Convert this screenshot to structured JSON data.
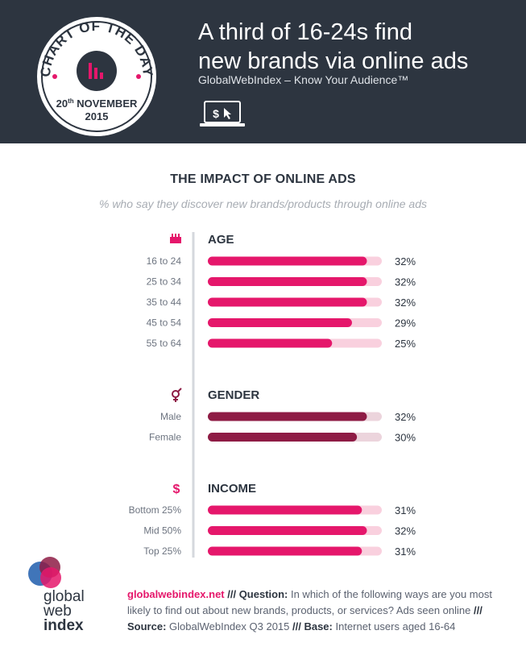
{
  "header": {
    "badge_top": "CHART OF THE DAY",
    "badge_day": "20",
    "badge_day_suffix": "th",
    "badge_month": "NOVEMBER",
    "badge_year": "2015",
    "title_line1": "A third of 16-24s find",
    "title_line2": "new brands via online ads",
    "subtitle": "GlobalWebIndex – Know Your Audience™",
    "laptop_icon": "laptop-dollar-cursor-icon"
  },
  "chart_title": "THE IMPACT OF ONLINE ADS",
  "chart_subtitle": "% who say they discover new brands/products through online ads",
  "colors": {
    "header_bg": "#2d3540",
    "pink": "#e5176b",
    "pink_track": "#f9d0de",
    "maroon": "#8e1c45",
    "maroon_track": "#ecd4dc"
  },
  "chart_data": {
    "type": "bar",
    "orientation": "horizontal",
    "unit": "%",
    "xlim": [
      0,
      35
    ],
    "sections": [
      {
        "name": "AGE",
        "icon": "cake-icon",
        "color": "#e5176b",
        "track": "#f9d0de",
        "categories": [
          "16 to 24",
          "25 to 34",
          "35 to 44",
          "45 to 54",
          "55 to 64"
        ],
        "values": [
          32,
          32,
          32,
          29,
          25
        ]
      },
      {
        "name": "GENDER",
        "icon": "gender-icon",
        "color": "#8e1c45",
        "track": "#ecd4dc",
        "categories": [
          "Male",
          "Female"
        ],
        "values": [
          32,
          30
        ]
      },
      {
        "name": "INCOME",
        "icon": "dollar-icon",
        "color": "#e5176b",
        "track": "#f9d0de",
        "categories": [
          "Bottom 25%",
          "Mid 50%",
          "Top 25%"
        ],
        "values": [
          31,
          32,
          31
        ]
      }
    ]
  },
  "footer": {
    "logo_line1": "global",
    "logo_line2": "web",
    "logo_line3": "index",
    "site": "globalwebindex.net",
    "sep1": " /// ",
    "question_label": "Question:",
    "question_text": " In which of the following ways are you most likely to find out about new brands, products, or services? Ads seen online ",
    "sep2": "/// ",
    "source_label": "Source:",
    "source_text": " GlobalWebIndex Q3 2015 ",
    "sep3": "/// ",
    "base_label": "Base:",
    "base_text": " Internet users aged 16-64"
  }
}
